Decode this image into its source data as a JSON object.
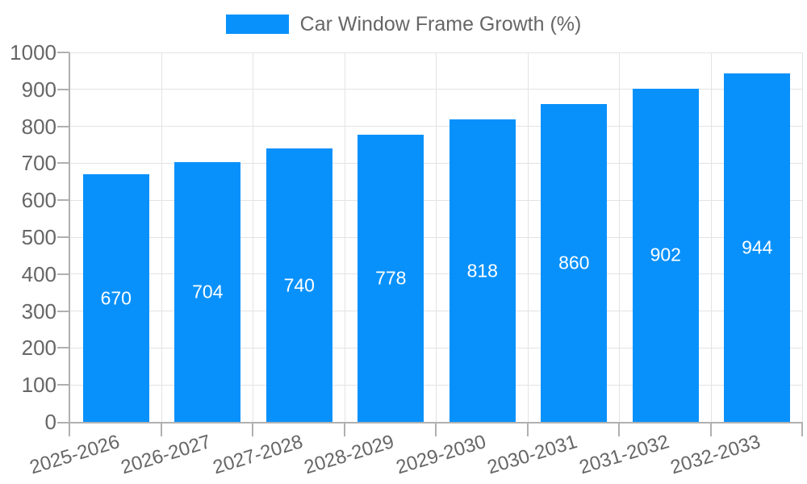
{
  "legend": {
    "label": "Car Window Frame Growth (%)"
  },
  "chart_data": {
    "type": "bar",
    "title": "Car Window Frame Growth (%)",
    "categories": [
      "2025-2026",
      "2026-2027",
      "2027-2028",
      "2028-2029",
      "2029-2030",
      "2030-2031",
      "2031-2032",
      "2032-2033"
    ],
    "values": [
      670,
      704,
      740,
      778,
      818,
      860,
      902,
      944
    ],
    "value_labels": [
      "670",
      "704",
      "740",
      "778",
      "818",
      "860",
      "902",
      "944"
    ],
    "ytick_labels": [
      "0",
      "100",
      "200",
      "300",
      "400",
      "500",
      "600",
      "700",
      "800",
      "900",
      "1000"
    ],
    "ylim": [
      0,
      1000
    ],
    "ytick_step": 100,
    "xlabel": "",
    "ylabel": "",
    "grid": true,
    "legend_position": "top-center",
    "colors": {
      "bar": "#0991fb",
      "value_label": "#ffffff",
      "axis": "#b0b0b0",
      "grid": "#e3e3e3",
      "tick_label": "#666666"
    }
  }
}
